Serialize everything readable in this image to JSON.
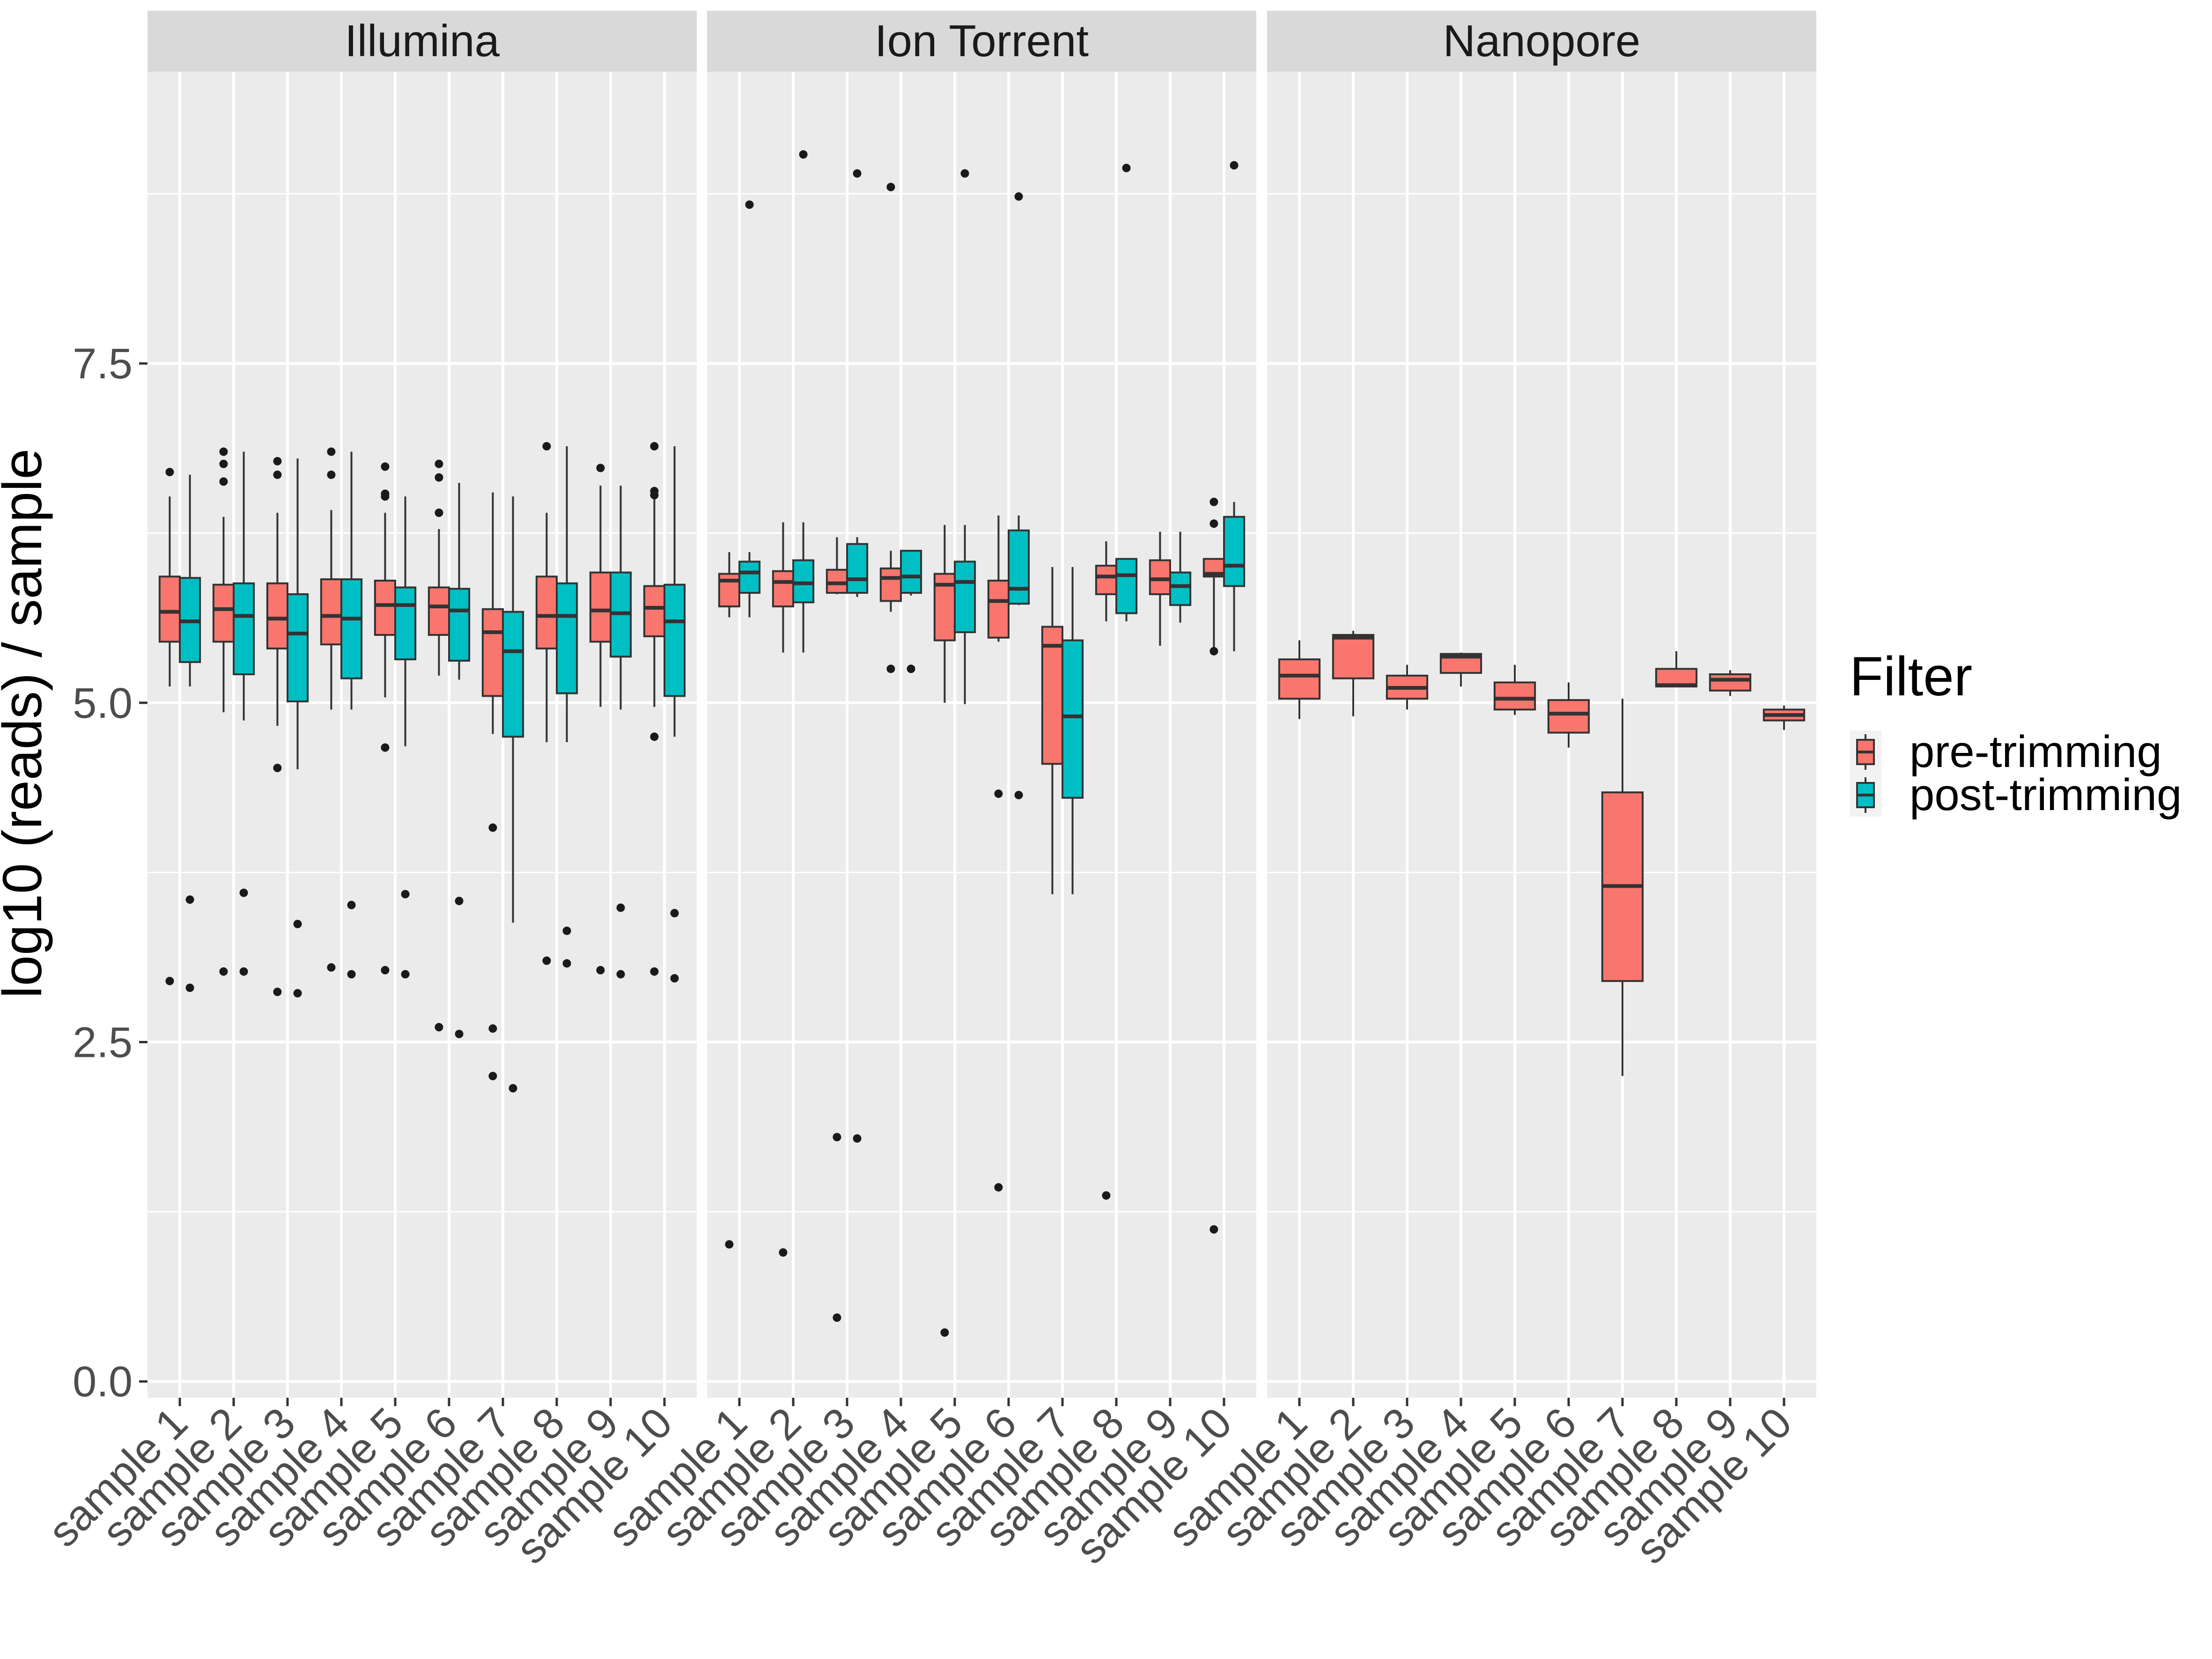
{
  "chart_data": {
    "type": "boxplot",
    "ylabel": "log10 (reads) / sample",
    "xlabel": "",
    "ylim": [
      -0.12,
      9.65
    ],
    "yticks": [
      0.0,
      2.5,
      5.0,
      7.5
    ],
    "ytick_labels": [
      "0.0",
      "2.5",
      "5.0",
      "7.5"
    ],
    "grid": true,
    "legend": {
      "title": "Filter",
      "position": "right",
      "entries": [
        {
          "key": "pre",
          "label": "pre-trimming",
          "color": "#F8766D"
        },
        {
          "key": "post",
          "label": "post-trimming",
          "color": "#00BFC4"
        }
      ]
    },
    "categories": [
      "sample 1",
      "sample 2",
      "sample 3",
      "sample 4",
      "sample 5",
      "sample 6",
      "sample 7",
      "sample 8",
      "sample 9",
      "sample 10"
    ],
    "facets": [
      {
        "name": "Illumina",
        "series": [
          {
            "key": "pre",
            "boxes": [
              {
                "min": 5.12,
                "q1": 5.45,
                "median": 5.67,
                "q3": 5.93,
                "max": 6.52,
                "outliers": [
                  6.7,
                  2.95
                ]
              },
              {
                "min": 4.93,
                "q1": 5.45,
                "median": 5.69,
                "q3": 5.87,
                "max": 6.37,
                "outliers": [
                  6.85,
                  6.76,
                  6.63,
                  3.02
                ]
              },
              {
                "min": 4.83,
                "q1": 5.4,
                "median": 5.62,
                "q3": 5.88,
                "max": 6.4,
                "outliers": [
                  6.78,
                  6.68,
                  4.52,
                  2.87
                ]
              },
              {
                "min": 4.95,
                "q1": 5.43,
                "median": 5.64,
                "q3": 5.91,
                "max": 6.42,
                "outliers": [
                  6.85,
                  6.68,
                  3.05
                ]
              },
              {
                "min": 5.04,
                "q1": 5.5,
                "median": 5.72,
                "q3": 5.9,
                "max": 6.4,
                "outliers": [
                  6.74,
                  6.54,
                  6.52,
                  4.67,
                  3.03
                ]
              },
              {
                "min": 5.2,
                "q1": 5.5,
                "median": 5.71,
                "q3": 5.85,
                "max": 6.28,
                "outliers": [
                  6.76,
                  6.66,
                  6.4,
                  2.61
                ]
              },
              {
                "min": 4.77,
                "q1": 5.05,
                "median": 5.52,
                "q3": 5.69,
                "max": 6.55,
                "outliers": [
                  4.08,
                  2.6,
                  2.25
                ]
              },
              {
                "min": 4.71,
                "q1": 5.4,
                "median": 5.64,
                "q3": 5.93,
                "max": 6.4,
                "outliers": [
                  6.89,
                  3.1
                ]
              },
              {
                "min": 4.97,
                "q1": 5.45,
                "median": 5.68,
                "q3": 5.96,
                "max": 6.6,
                "outliers": [
                  6.73,
                  3.03
                ]
              },
              {
                "min": 4.97,
                "q1": 5.49,
                "median": 5.7,
                "q3": 5.86,
                "max": 6.5,
                "outliers": [
                  6.89,
                  6.56,
                  6.53,
                  4.75,
                  3.02
                ]
              }
            ]
          },
          {
            "key": "post",
            "boxes": [
              {
                "min": 5.12,
                "q1": 5.3,
                "median": 5.6,
                "q3": 5.92,
                "max": 6.68,
                "outliers": [
                  3.55,
                  2.9
                ]
              },
              {
                "min": 4.87,
                "q1": 5.21,
                "median": 5.64,
                "q3": 5.88,
                "max": 6.85,
                "outliers": [
                  3.6,
                  3.02
                ]
              },
              {
                "min": 4.51,
                "q1": 5.01,
                "median": 5.51,
                "q3": 5.8,
                "max": 6.8,
                "outliers": [
                  3.37,
                  2.86
                ]
              },
              {
                "min": 4.95,
                "q1": 5.18,
                "median": 5.62,
                "q3": 5.91,
                "max": 6.85,
                "outliers": [
                  3.51,
                  3.0
                ]
              },
              {
                "min": 4.68,
                "q1": 5.32,
                "median": 5.72,
                "q3": 5.85,
                "max": 6.52,
                "outliers": [
                  3.59,
                  3.0
                ]
              },
              {
                "min": 5.17,
                "q1": 5.31,
                "median": 5.68,
                "q3": 5.84,
                "max": 6.62,
                "outliers": [
                  3.54,
                  2.56
                ]
              },
              {
                "min": 3.38,
                "q1": 4.75,
                "median": 5.38,
                "q3": 5.67,
                "max": 6.52,
                "outliers": [
                  2.16
                ]
              },
              {
                "min": 4.71,
                "q1": 5.07,
                "median": 5.64,
                "q3": 5.88,
                "max": 6.89,
                "outliers": [
                  3.32,
                  3.08
                ]
              },
              {
                "min": 4.95,
                "q1": 5.34,
                "median": 5.66,
                "q3": 5.96,
                "max": 6.6,
                "outliers": [
                  3.49,
                  3.0
                ]
              },
              {
                "min": 4.75,
                "q1": 5.05,
                "median": 5.6,
                "q3": 5.87,
                "max": 6.89,
                "outliers": [
                  3.45,
                  2.97
                ]
              }
            ]
          }
        ]
      },
      {
        "name": "Ion Torrent",
        "series": [
          {
            "key": "pre",
            "boxes": [
              {
                "min": 5.63,
                "q1": 5.71,
                "median": 5.9,
                "q3": 5.95,
                "max": 6.11,
                "outliers": [
                  1.01
                ]
              },
              {
                "min": 5.37,
                "q1": 5.71,
                "median": 5.89,
                "q3": 5.97,
                "max": 6.33,
                "outliers": [
                  0.95
                ]
              },
              {
                "min": 5.8,
                "q1": 5.81,
                "median": 5.88,
                "q3": 5.98,
                "max": 6.22,
                "outliers": [
                  1.8,
                  0.47
                ]
              },
              {
                "min": 5.67,
                "q1": 5.75,
                "median": 5.92,
                "q3": 5.99,
                "max": 6.12,
                "outliers": [
                  8.8,
                  5.25
                ]
              },
              {
                "min": 5.0,
                "q1": 5.46,
                "median": 5.87,
                "q3": 5.95,
                "max": 6.31,
                "outliers": [
                  0.36
                ]
              },
              {
                "min": 5.45,
                "q1": 5.48,
                "median": 5.75,
                "q3": 5.9,
                "max": 6.38,
                "outliers": [
                  4.33,
                  1.43
                ]
              },
              {
                "min": 3.59,
                "q1": 4.55,
                "median": 5.42,
                "q3": 5.56,
                "max": 6.0,
                "outliers": []
              },
              {
                "min": 5.6,
                "q1": 5.8,
                "median": 5.93,
                "q3": 6.01,
                "max": 6.19,
                "outliers": [
                  1.37
                ]
              },
              {
                "min": 5.42,
                "q1": 5.8,
                "median": 5.91,
                "q3": 6.05,
                "max": 6.26,
                "outliers": []
              },
              {
                "min": 5.38,
                "q1": 5.93,
                "median": 5.95,
                "q3": 6.06,
                "max": 6.06,
                "outliers": [
                  6.48,
                  6.32,
                  5.38,
                  1.12
                ]
              }
            ]
          },
          {
            "key": "post",
            "boxes": [
              {
                "min": 5.63,
                "q1": 5.81,
                "median": 5.96,
                "q3": 6.04,
                "max": 6.11,
                "outliers": [
                  8.67
                ]
              },
              {
                "min": 5.37,
                "q1": 5.74,
                "median": 5.88,
                "q3": 6.05,
                "max": 6.33,
                "outliers": [
                  9.04
                ]
              },
              {
                "min": 5.78,
                "q1": 5.81,
                "median": 5.91,
                "q3": 6.17,
                "max": 6.22,
                "outliers": [
                  8.9,
                  1.79
                ]
              },
              {
                "min": 5.79,
                "q1": 5.81,
                "median": 5.93,
                "q3": 6.12,
                "max": 6.12,
                "outliers": [
                  5.25
                ]
              },
              {
                "min": 4.99,
                "q1": 5.52,
                "median": 5.89,
                "q3": 6.04,
                "max": 6.31,
                "outliers": [
                  8.9
                ]
              },
              {
                "min": 5.72,
                "q1": 5.73,
                "median": 5.84,
                "q3": 6.27,
                "max": 6.38,
                "outliers": [
                  8.73,
                  4.32
                ]
              },
              {
                "min": 3.59,
                "q1": 4.3,
                "median": 4.9,
                "q3": 5.46,
                "max": 6.0,
                "outliers": []
              },
              {
                "min": 5.6,
                "q1": 5.66,
                "median": 5.94,
                "q3": 6.06,
                "max": 6.06,
                "outliers": [
                  8.94
                ]
              },
              {
                "min": 5.59,
                "q1": 5.72,
                "median": 5.86,
                "q3": 5.96,
                "max": 6.26,
                "outliers": []
              },
              {
                "min": 5.38,
                "q1": 5.86,
                "median": 6.01,
                "q3": 6.37,
                "max": 6.48,
                "outliers": [
                  8.96
                ]
              }
            ]
          }
        ]
      },
      {
        "name": "Nanopore",
        "series": [
          {
            "key": "pre",
            "boxes": [
              {
                "min": 4.88,
                "q1": 5.03,
                "median": 5.2,
                "q3": 5.32,
                "max": 5.46,
                "outliers": []
              },
              {
                "min": 4.9,
                "q1": 5.18,
                "median": 5.48,
                "q3": 5.5,
                "max": 5.53,
                "outliers": []
              },
              {
                "min": 4.95,
                "q1": 5.03,
                "median": 5.11,
                "q3": 5.2,
                "max": 5.28,
                "outliers": []
              },
              {
                "min": 5.12,
                "q1": 5.22,
                "median": 5.34,
                "q3": 5.36,
                "max": 5.37,
                "outliers": []
              },
              {
                "min": 4.91,
                "q1": 4.95,
                "median": 5.03,
                "q3": 5.15,
                "max": 5.28,
                "outliers": []
              },
              {
                "min": 4.67,
                "q1": 4.78,
                "median": 4.92,
                "q3": 5.02,
                "max": 5.15,
                "outliers": []
              },
              {
                "min": 2.25,
                "q1": 2.95,
                "median": 3.65,
                "q3": 4.34,
                "max": 5.03,
                "outliers": []
              },
              {
                "min": 5.12,
                "q1": 5.12,
                "median": 5.13,
                "q3": 5.25,
                "max": 5.38,
                "outliers": []
              },
              {
                "min": 5.05,
                "q1": 5.09,
                "median": 5.17,
                "q3": 5.21,
                "max": 5.24,
                "outliers": []
              },
              {
                "min": 4.8,
                "q1": 4.87,
                "median": 4.91,
                "q3": 4.95,
                "max": 4.98,
                "outliers": []
              }
            ]
          }
        ]
      }
    ]
  }
}
